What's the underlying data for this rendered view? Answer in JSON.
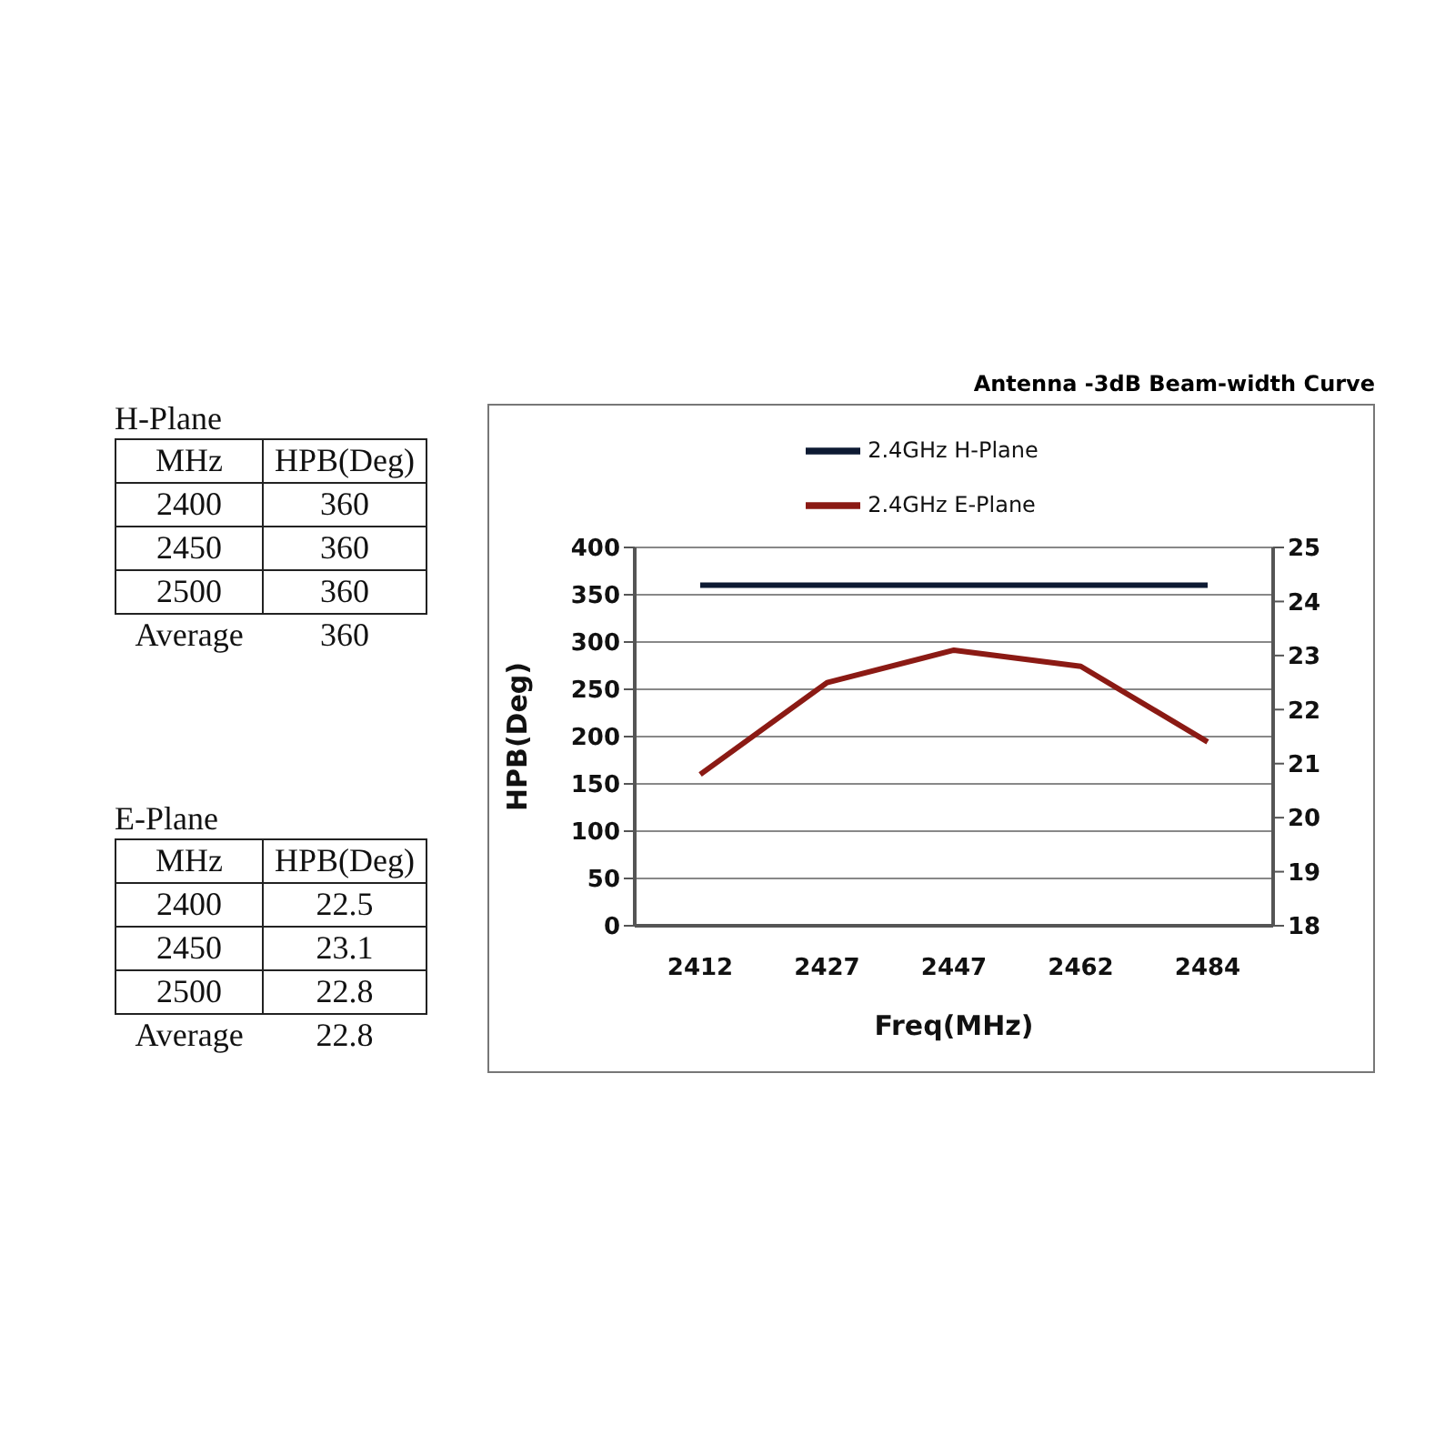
{
  "chart_data": [
    {
      "type": "other",
      "title": "H-Plane",
      "xlabel": "MHz",
      "ylabel": "HPB(Deg)",
      "categories": [
        "2400",
        "2450",
        "2500",
        "Average"
      ],
      "values": [
        360,
        360,
        360,
        360
      ],
      "data_labels": true
    },
    {
      "type": "other",
      "title": "E-Plane",
      "xlabel": "MHz",
      "ylabel": "HPB(Deg)",
      "categories": [
        "2400",
        "2450",
        "2500",
        "Average"
      ],
      "values": [
        22.5,
        23.1,
        22.8,
        22.8
      ],
      "data_labels": true
    },
    {
      "type": "line",
      "title": "Antenna -3dB Beam-width Curve",
      "xlabel": "Freq(MHz)",
      "ylabel": "HPB(Deg)",
      "categories": [
        "2412",
        "2427",
        "2447",
        "2462",
        "2484"
      ],
      "series": [
        {
          "name": "2.4GHz H-Plane",
          "color": "#0d1a33",
          "values": [
            360,
            360,
            360,
            360,
            360
          ]
        },
        {
          "name": "2.4GHz E-Plane",
          "color": "#8b1a14",
          "axis": "y2",
          "values": [
            20.8,
            22.5,
            23.1,
            22.8,
            21.4
          ]
        }
      ],
      "ylim": [
        0,
        400
      ],
      "yticks": [
        0,
        50,
        100,
        150,
        200,
        250,
        300,
        350,
        400
      ],
      "y2lim": [
        18,
        25
      ],
      "y2ticks": [
        18,
        19,
        20,
        21,
        22,
        23,
        24,
        25
      ],
      "grid": "y",
      "legend": "top",
      "marker": "none",
      "line_style": "solid"
    }
  ]
}
